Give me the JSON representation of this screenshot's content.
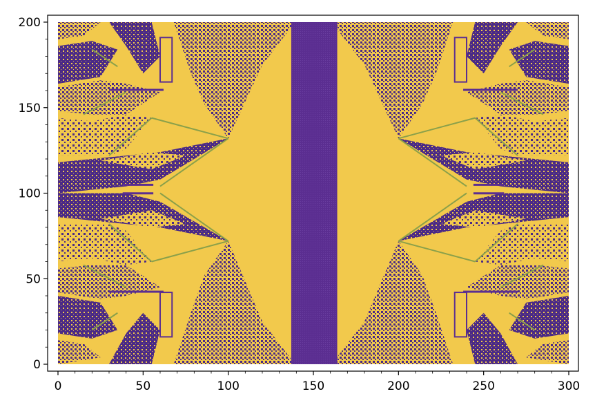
{
  "chart_data": {
    "type": "heatmap",
    "title": "",
    "xlabel": "",
    "ylabel": "",
    "xlim": [
      0,
      300
    ],
    "ylim": [
      0,
      200
    ],
    "x_ticks": [
      0,
      50,
      100,
      150,
      200,
      250,
      300
    ],
    "y_ticks": [
      0,
      50,
      100,
      150,
      200
    ],
    "x_tick_labels": [
      "0",
      "50",
      "100",
      "150",
      "200",
      "250",
      "300"
    ],
    "y_tick_labels": [
      "0",
      "50",
      "100",
      "150",
      "200"
    ],
    "grid": false,
    "legend": "none",
    "colormap": {
      "low": "#5b2e91",
      "mid": "#8aa04a",
      "high": "#f2c94c"
    },
    "uniform_regions": [
      {
        "x": [
          137,
          164
        ],
        "y": [
          0,
          200
        ],
        "value": "low"
      }
    ],
    "symmetry": "mirror about x = 150"
  }
}
